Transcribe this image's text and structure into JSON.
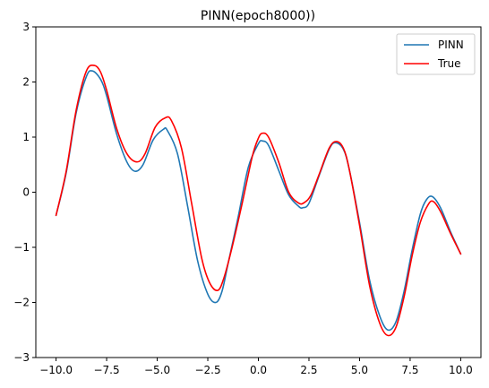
{
  "chart_data": {
    "type": "line",
    "title": "PINN(epoch8000))",
    "xlabel": "",
    "ylabel": "",
    "xlim": [
      -11.0,
      11.0
    ],
    "ylim": [
      -3,
      3
    ],
    "xticks": [
      -10.0,
      -7.5,
      -5.0,
      -2.5,
      0.0,
      2.5,
      5.0,
      7.5,
      10.0
    ],
    "xtick_labels": [
      "−10.0",
      "−7.5",
      "−5.0",
      "−2.5",
      "0.0",
      "2.5",
      "5.0",
      "7.5",
      "10.0"
    ],
    "yticks": [
      -3,
      -2,
      -1,
      0,
      1,
      2,
      3
    ],
    "ytick_labels": [
      "−3",
      "−2",
      "−1",
      "0",
      "1",
      "2",
      "3"
    ],
    "grid": false,
    "legend_position": "top-right",
    "series": [
      {
        "name": "PINN",
        "color": "#1f77b4",
        "points": [
          [
            -10.0,
            -0.42
          ],
          [
            -9.5,
            0.35
          ],
          [
            -9.0,
            1.45
          ],
          [
            -8.5,
            2.1
          ],
          [
            -8.2,
            2.2
          ],
          [
            -7.8,
            2.05
          ],
          [
            -7.5,
            1.75
          ],
          [
            -7.0,
            1.05
          ],
          [
            -6.5,
            0.55
          ],
          [
            -6.1,
            0.38
          ],
          [
            -5.7,
            0.5
          ],
          [
            -5.2,
            0.95
          ],
          [
            -4.7,
            1.14
          ],
          [
            -4.5,
            1.12
          ],
          [
            -4.0,
            0.7
          ],
          [
            -3.5,
            -0.25
          ],
          [
            -3.0,
            -1.25
          ],
          [
            -2.5,
            -1.85
          ],
          [
            -2.1,
            -2.0
          ],
          [
            -1.8,
            -1.8
          ],
          [
            -1.5,
            -1.3
          ],
          [
            -1.0,
            -0.45
          ],
          [
            -0.5,
            0.45
          ],
          [
            0.0,
            0.88
          ],
          [
            0.2,
            0.93
          ],
          [
            0.5,
            0.85
          ],
          [
            1.0,
            0.4
          ],
          [
            1.5,
            -0.05
          ],
          [
            2.0,
            -0.26
          ],
          [
            2.2,
            -0.28
          ],
          [
            2.5,
            -0.2
          ],
          [
            3.0,
            0.3
          ],
          [
            3.5,
            0.78
          ],
          [
            3.8,
            0.9
          ],
          [
            4.2,
            0.78
          ],
          [
            4.5,
            0.4
          ],
          [
            5.0,
            -0.55
          ],
          [
            5.5,
            -1.6
          ],
          [
            6.0,
            -2.25
          ],
          [
            6.4,
            -2.5
          ],
          [
            6.8,
            -2.35
          ],
          [
            7.2,
            -1.8
          ],
          [
            7.6,
            -1.05
          ],
          [
            8.0,
            -0.4
          ],
          [
            8.3,
            -0.14
          ],
          [
            8.6,
            -0.08
          ],
          [
            9.0,
            -0.28
          ],
          [
            9.5,
            -0.72
          ],
          [
            10.0,
            -1.12
          ]
        ]
      },
      {
        "name": "True",
        "color": "#ff0000",
        "points": [
          [
            -10.0,
            -0.42
          ],
          [
            -9.5,
            0.38
          ],
          [
            -9.0,
            1.5
          ],
          [
            -8.5,
            2.2
          ],
          [
            -8.1,
            2.3
          ],
          [
            -7.8,
            2.18
          ],
          [
            -7.5,
            1.85
          ],
          [
            -7.0,
            1.15
          ],
          [
            -6.5,
            0.7
          ],
          [
            -6.0,
            0.55
          ],
          [
            -5.6,
            0.7
          ],
          [
            -5.1,
            1.18
          ],
          [
            -4.6,
            1.35
          ],
          [
            -4.3,
            1.3
          ],
          [
            -3.8,
            0.8
          ],
          [
            -3.3,
            -0.2
          ],
          [
            -2.8,
            -1.2
          ],
          [
            -2.4,
            -1.65
          ],
          [
            -2.0,
            -1.78
          ],
          [
            -1.7,
            -1.55
          ],
          [
            -1.3,
            -1.0
          ],
          [
            -0.8,
            -0.2
          ],
          [
            -0.3,
            0.65
          ],
          [
            0.0,
            0.98
          ],
          [
            0.2,
            1.07
          ],
          [
            0.5,
            1.0
          ],
          [
            1.0,
            0.55
          ],
          [
            1.5,
            0.0
          ],
          [
            2.0,
            -0.2
          ],
          [
            2.3,
            -0.18
          ],
          [
            2.6,
            -0.05
          ],
          [
            3.0,
            0.32
          ],
          [
            3.5,
            0.8
          ],
          [
            3.85,
            0.92
          ],
          [
            4.2,
            0.8
          ],
          [
            4.5,
            0.4
          ],
          [
            5.0,
            -0.6
          ],
          [
            5.5,
            -1.7
          ],
          [
            6.0,
            -2.38
          ],
          [
            6.4,
            -2.6
          ],
          [
            6.8,
            -2.45
          ],
          [
            7.2,
            -1.9
          ],
          [
            7.6,
            -1.15
          ],
          [
            8.0,
            -0.55
          ],
          [
            8.4,
            -0.22
          ],
          [
            8.65,
            -0.17
          ],
          [
            9.0,
            -0.35
          ],
          [
            9.5,
            -0.75
          ],
          [
            10.0,
            -1.12
          ]
        ]
      }
    ]
  }
}
